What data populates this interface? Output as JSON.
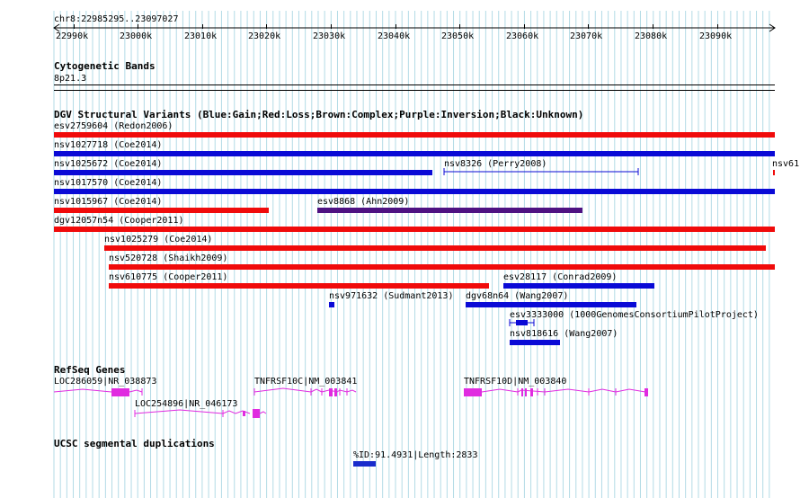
{
  "ruler": {
    "location": "chr8:22985295..23097027",
    "ticks": [
      "22990k",
      "23000k",
      "23010k",
      "23020k",
      "23030k",
      "23040k",
      "23050k",
      "23060k",
      "23070k",
      "23080k",
      "23090k"
    ]
  },
  "tracks": {
    "cytoband": {
      "title": "Cytogenetic Bands",
      "band": "8p21.3"
    },
    "dgv": {
      "title": "DGV Structural Variants (Blue:Gain;Red:Loss;Brown:Complex;Purple:Inversion;Black:Unknown)",
      "variants": [
        {
          "label": "esv2759604 (Redon2006)",
          "type": "Loss"
        },
        {
          "label": "nsv1027718 (Coe2014)",
          "type": "Gain"
        },
        {
          "label": "nsv1025672 (Coe2014)",
          "type": "Gain"
        },
        {
          "label": "nsv8326 (Perry2008)",
          "type": "Gain"
        },
        {
          "label": "nsv61",
          "type": "Loss"
        },
        {
          "label": "nsv1017570 (Coe2014)",
          "type": "Gain"
        },
        {
          "label": "nsv1015967 (Coe2014)",
          "type": "Loss"
        },
        {
          "label": "esv8868 (Ahn2009)",
          "type": "Inversion"
        },
        {
          "label": "dgv12057n54 (Cooper2011)",
          "type": "Loss"
        },
        {
          "label": "nsv1025279 (Coe2014)",
          "type": "Loss"
        },
        {
          "label": "nsv520728 (Shaikh2009)",
          "type": "Loss"
        },
        {
          "label": "nsv610775 (Cooper2011)",
          "type": "Loss"
        },
        {
          "label": "esv28117 (Conrad2009)",
          "type": "Gain"
        },
        {
          "label": "nsv971632 (Sudmant2013)",
          "type": "Gain"
        },
        {
          "label": "dgv68n64 (Wang2007)",
          "type": "Gain"
        },
        {
          "label": "esv3333000 (1000GenomesConsortiumPilotProject)",
          "type": "Gain"
        },
        {
          "label": "nsv818616 (Wang2007)",
          "type": "Gain"
        }
      ]
    },
    "refseq": {
      "title": "RefSeq Genes",
      "genes": [
        "LOC286059|NR_038873",
        "LOC254896|NR_046173",
        "TNFRSF10C|NM_003841",
        "TNFRSF10D|NM_003840"
      ]
    },
    "segdup": {
      "title": "UCSC segmental duplications",
      "items": [
        "%ID:91.4931|Length:2833"
      ]
    }
  },
  "colors": {
    "gain": "#0a0ad6",
    "loss": "#f00b0b",
    "inversion": "#4e1282",
    "gene": "#e02be0",
    "grid": "#b3dbe6",
    "segdup": "#1a2ccc"
  }
}
